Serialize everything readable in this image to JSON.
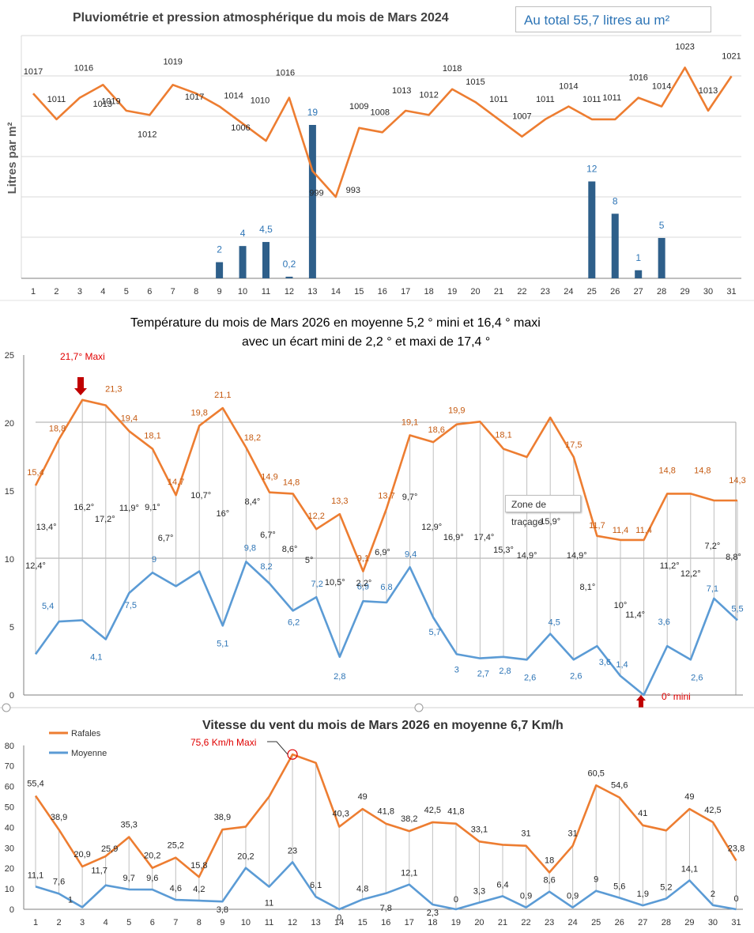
{
  "chart_data": [
    {
      "type": "bar",
      "title": "Pluviométrie et pression atmosphérique du mois de Mars  2024",
      "ylabel": "Litres  par  m²",
      "total_label": "Au total  55,7  litres au m²",
      "categories": [
        "1",
        "2",
        "3",
        "4",
        "5",
        "6",
        "7",
        "8",
        "9",
        "10",
        "11",
        "12",
        "13",
        "14",
        "15",
        "16",
        "17",
        "18",
        "19",
        "20",
        "21",
        "22",
        "23",
        "24",
        "25",
        "26",
        "27",
        "28",
        "29",
        "30",
        "31"
      ],
      "series": [
        {
          "name": "Pluviométrie",
          "values": [
            null,
            null,
            null,
            null,
            null,
            null,
            null,
            null,
            2,
            4,
            4.5,
            0.2,
            19,
            null,
            null,
            null,
            null,
            null,
            null,
            null,
            null,
            null,
            null,
            null,
            12,
            8,
            1,
            5,
            null,
            null,
            null
          ],
          "labels": [
            "",
            "",
            "",
            "",
            "",
            "",
            "",
            "",
            "2",
            "4",
            "4,5",
            "0,2",
            "19",
            "",
            "",
            "",
            "",
            "",
            "",
            "",
            "",
            "",
            "",
            "",
            "12",
            "8",
            "1",
            "5",
            "",
            "",
            ""
          ]
        },
        {
          "name": "Pression",
          "values": [
            1017,
            1011,
            1016,
            1019,
            1013,
            1012,
            1019,
            1017,
            1014,
            1010,
            1006,
            1016,
            999,
            993,
            1009,
            1008,
            1013,
            1012,
            1018,
            1015,
            1011,
            1007,
            1011,
            1014,
            1011,
            1011,
            1016,
            1014,
            1023,
            1013,
            1021
          ],
          "labels": [
            "1017",
            "1011",
            "1016",
            "1019",
            "1013",
            "1012",
            "1019",
            "1017",
            "1014",
            "1010",
            "1006",
            "1016",
            "999",
            "993",
            "1009",
            "1008",
            "1013",
            "1012",
            "1018",
            "1015",
            "1011",
            "1007",
            "1011",
            "1014",
            "1011",
            "1011",
            "1016",
            "1014",
            "1023",
            "1013",
            "1021"
          ]
        }
      ],
      "colors": {
        "bars": "#2e5f8a",
        "line": "#ed7d31",
        "bar_labels": "#2e75b6"
      }
    },
    {
      "type": "line",
      "title": "Température du mois de Mars 2026           en moyenne 5,2 °  mini  et  16,4 °  maxi",
      "subtitle": "avec un écart mini de 2,2 ° et maxi de  17,4 °",
      "ylim": [
        0,
        25
      ],
      "yticks": [
        "0",
        "5",
        "10",
        "15",
        "20",
        "25"
      ],
      "max_annotation": "21,7° Maxi",
      "min_annotation": "0° mini",
      "tooltip": "Zone de traçage",
      "series": [
        {
          "name": "Maxi",
          "values": [
            15.4,
            18.8,
            21.7,
            21.3,
            19.4,
            18.1,
            14.7,
            19.8,
            21.1,
            18.2,
            14.9,
            14.8,
            12.2,
            13.3,
            9.1,
            13.7,
            19.1,
            18.6,
            19.9,
            20.1,
            18.1,
            17.5,
            20.4,
            17.5,
            11.7,
            11.4,
            11.4,
            14.8,
            14.8,
            14.3,
            14.3
          ],
          "labels": [
            "15,4",
            "18,8",
            "",
            "21,3",
            "19,4",
            "18,1",
            "14,7",
            "19,8",
            "21,1",
            "18,2",
            "14,9",
            "14,8",
            "12,2",
            "13,3",
            "9,1",
            "13,7",
            "19,1",
            "18,6",
            "19,9",
            "",
            "18,1",
            "",
            "",
            "17,5",
            "11,7",
            "11,4",
            "11,4",
            "14,8",
            "14,8",
            "",
            "14,3"
          ]
        },
        {
          "name": "Mini",
          "values": [
            3.0,
            5.4,
            5.5,
            4.1,
            7.5,
            9.0,
            8.0,
            9.1,
            5.1,
            9.8,
            8.2,
            6.2,
            7.2,
            2.8,
            6.9,
            6.8,
            9.4,
            5.7,
            3.0,
            2.7,
            2.8,
            2.6,
            4.5,
            2.6,
            3.6,
            1.4,
            0.0,
            3.6,
            2.6,
            7.1,
            5.5
          ],
          "labels": [
            "",
            "5,4",
            "",
            "4,1",
            "7,5",
            "9",
            "",
            "",
            "5,1",
            "9,8",
            "8,2",
            "6,2",
            "7,2",
            "2,8",
            "6,9",
            "6,8",
            "9,4",
            "5,7",
            "3",
            "2,7",
            "2,8",
            "2,6",
            "4,5",
            "2,6",
            "3,6",
            "1,4",
            "",
            "3,6",
            "2,6",
            "7,1",
            "5,5"
          ]
        },
        {
          "name": "Écart",
          "labels": [
            "12,4°",
            "13,4°",
            "16,2°",
            "17,2°",
            "11,9°",
            "9,1°",
            "6,7°",
            "10,7°",
            "16°",
            "8,4°",
            "6,7°",
            "8,6°",
            "5°",
            "10,5°",
            "2,2°",
            "6,9°",
            "9,7°",
            "12,9°",
            "16,9°",
            "17,4°",
            "15,3°",
            "14,9°",
            "15,9°",
            "14,9°",
            "8,1°",
            "10°",
            "11,4°",
            "11,2°",
            "12,2°",
            "7,2°",
            "8,8°"
          ]
        }
      ],
      "colors": {
        "max": "#ed7d31",
        "min": "#5b9bd5",
        "max_labels": "#c55a11",
        "min_labels": "#2e75b6",
        "annot": "#e00000"
      }
    },
    {
      "type": "line",
      "title": "Vitesse du vent du mois de Mars  2026            en moyenne    6,7   Km/h",
      "ylim": [
        0,
        80
      ],
      "yticks": [
        "0",
        "10",
        "20",
        "30",
        "40",
        "50",
        "60",
        "70",
        "80"
      ],
      "categories": [
        "1",
        "2",
        "3",
        "4",
        "5",
        "6",
        "7",
        "8",
        "9",
        "10",
        "11",
        "12",
        "13",
        "14",
        "15",
        "16",
        "17",
        "18",
        "19",
        "20",
        "21",
        "22",
        "23",
        "24",
        "25",
        "26",
        "27",
        "28",
        "29",
        "30",
        "31"
      ],
      "max_annotation": "75,6 Km/h Maxi",
      "legend": [
        "Rafales",
        "Moyenne"
      ],
      "series": [
        {
          "name": "Rafales",
          "values": [
            55.4,
            38.9,
            20.9,
            25.9,
            35.3,
            20.2,
            25.2,
            15.8,
            38.9,
            40.3,
            55.0,
            75.6,
            71.5,
            40.3,
            49,
            41.8,
            38.2,
            42.5,
            41.8,
            33.1,
            31.5,
            31,
            18,
            31,
            60.5,
            54.6,
            41,
            38.5,
            49,
            42.5,
            23.8
          ],
          "labels": [
            "55,4",
            "38,9",
            "20,9",
            "",
            "35,3",
            "20,2",
            "25,2",
            "15,8",
            "38,9",
            "",
            "",
            "",
            "",
            "40,3",
            "49",
            "41,8",
            "38,2",
            "42,5",
            "41,8",
            "33,1",
            "",
            "31",
            "18",
            "31",
            "60,5",
            "54,6",
            "41",
            "",
            "49",
            "42,5",
            "23,8"
          ]
        },
        {
          "name": "Moyenne",
          "values": [
            11.1,
            7.6,
            1,
            11.7,
            9.7,
            9.6,
            4.6,
            4.2,
            3.8,
            20.2,
            11,
            23,
            6.1,
            0,
            4.8,
            7.8,
            12.1,
            2.3,
            0,
            3.3,
            6.4,
            0.9,
            8.6,
            0.9,
            9,
            5.6,
            1.9,
            5.2,
            14.1,
            2,
            0
          ],
          "labels": [
            "11,1",
            "7,6",
            "1",
            "11,7",
            "9,7",
            "9,6",
            "4,6",
            "4,2",
            "3,8",
            "20,2",
            "11",
            "23",
            "6,1",
            "0",
            "4,8",
            "7,8",
            "12,1",
            "2,3",
            "0",
            "3,3",
            "6,4",
            "0,9",
            "8,6",
            "0,9",
            "9",
            "5,6",
            "1,9",
            "5,2",
            "14,1",
            "2",
            "0"
          ],
          "extra_label": "25,9"
        }
      ],
      "colors": {
        "gusts": "#ed7d31",
        "avg": "#5b9bd5",
        "annot": "#e00000"
      }
    }
  ]
}
